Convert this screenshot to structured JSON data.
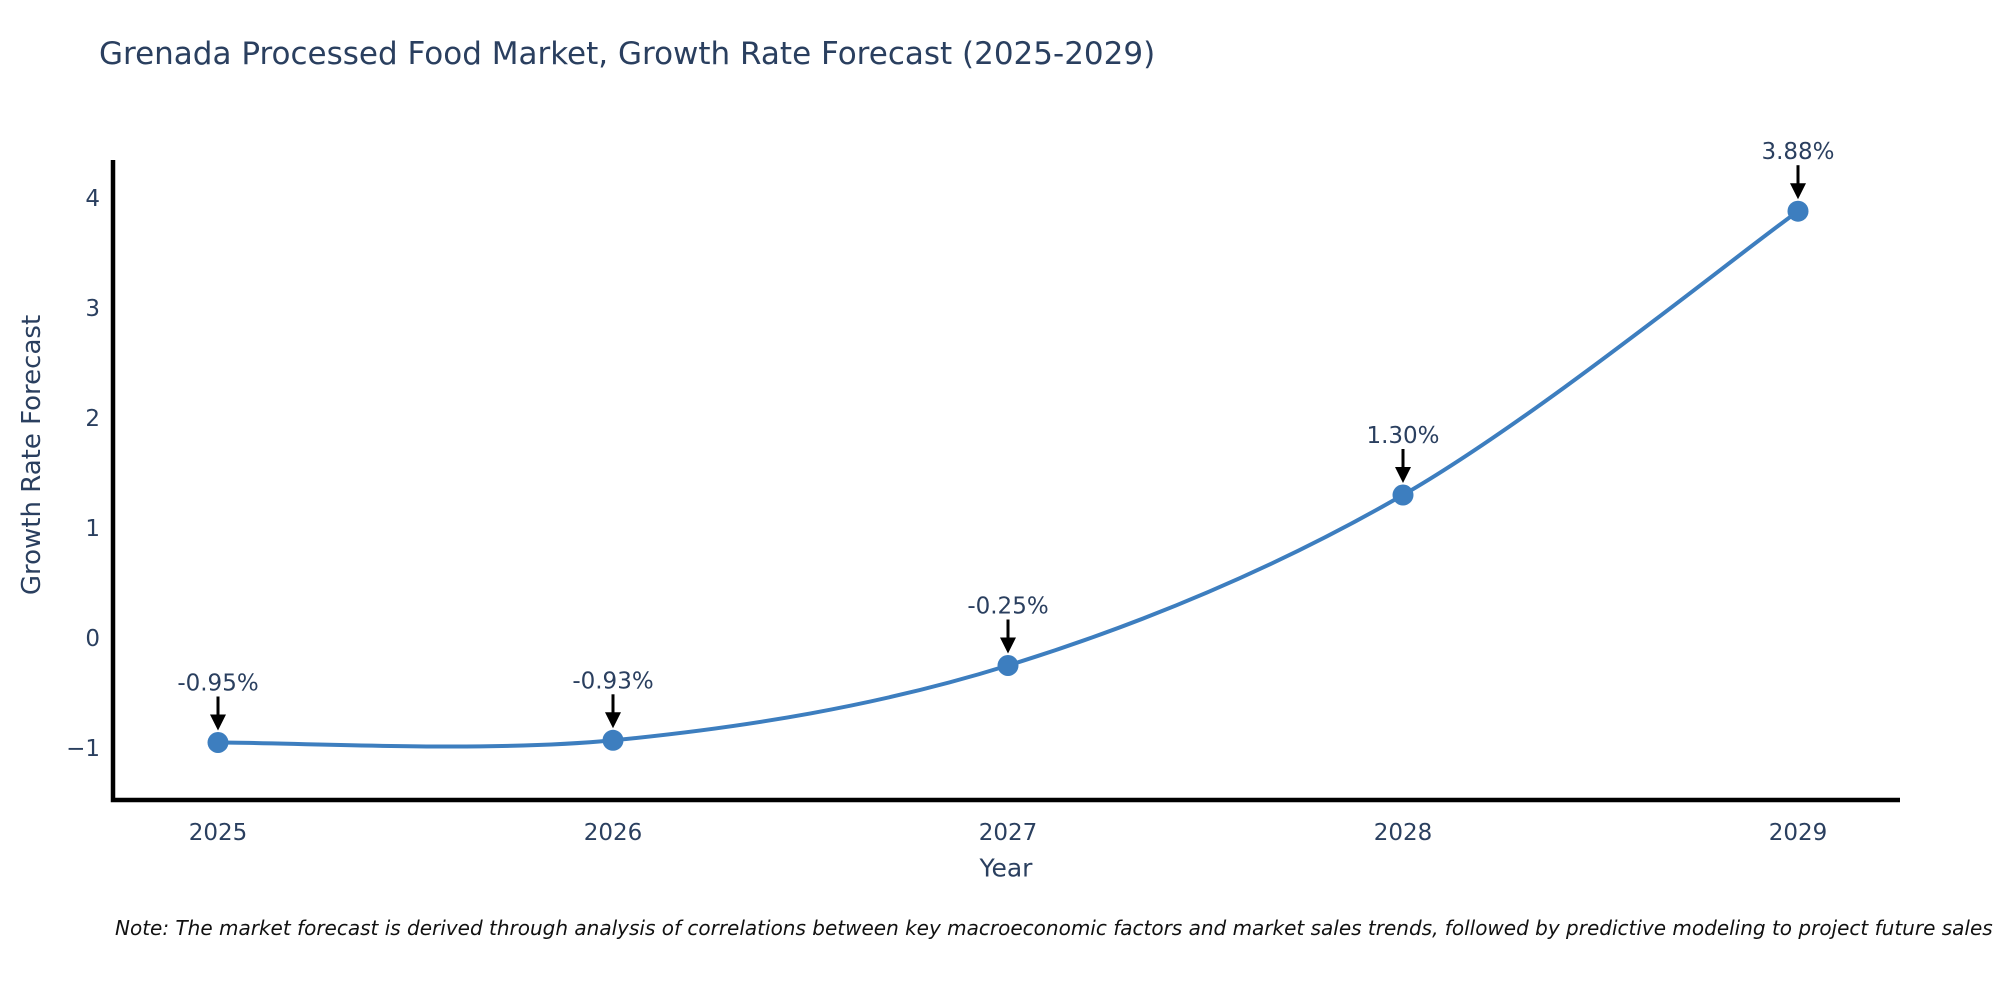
{
  "chart_data": {
    "type": "line",
    "title": "Grenada Processed Food Market, Growth Rate Forecast (2025-2029)",
    "xlabel": "Year",
    "ylabel": "Growth Rate Forecast",
    "x": [
      2025,
      2026,
      2027,
      2028,
      2029
    ],
    "series": [
      {
        "name": "Growth Rate Forecast",
        "values": [
          -0.95,
          -0.93,
          -0.25,
          1.3,
          3.88
        ]
      }
    ],
    "point_labels": [
      "-0.95%",
      "-0.93%",
      "-0.25%",
      "1.30%",
      "3.88%"
    ],
    "xticks": [
      {
        "value": 2025,
        "label": "2025"
      },
      {
        "value": 2026,
        "label": "2026"
      },
      {
        "value": 2027,
        "label": "2027"
      },
      {
        "value": 2028,
        "label": "2028"
      },
      {
        "value": 2029,
        "label": "2029"
      }
    ],
    "yticks": [
      {
        "value": 4,
        "label": "4"
      },
      {
        "value": 3,
        "label": "3"
      },
      {
        "value": 2,
        "label": "2"
      },
      {
        "value": 1,
        "label": "1"
      },
      {
        "value": 0,
        "label": "0"
      },
      {
        "value": -1,
        "label": "−1"
      }
    ],
    "ylim": [
      -1.47,
      4.35
    ],
    "xlim": [
      2024.73,
      2029.26
    ],
    "grid": false,
    "legend": false,
    "line_shape": "spline",
    "colors": {
      "line": "#3d7ebf",
      "marker": "#3d7ebf",
      "axis": "#000000",
      "text": "#2a3f5f",
      "annotation_arrow": "#000000",
      "background": "#ffffff"
    }
  },
  "note": "Note: The market forecast is derived through analysis of correlations between key macroeconomic factors and market sales trends, followed by predictive modeling to project future sales"
}
